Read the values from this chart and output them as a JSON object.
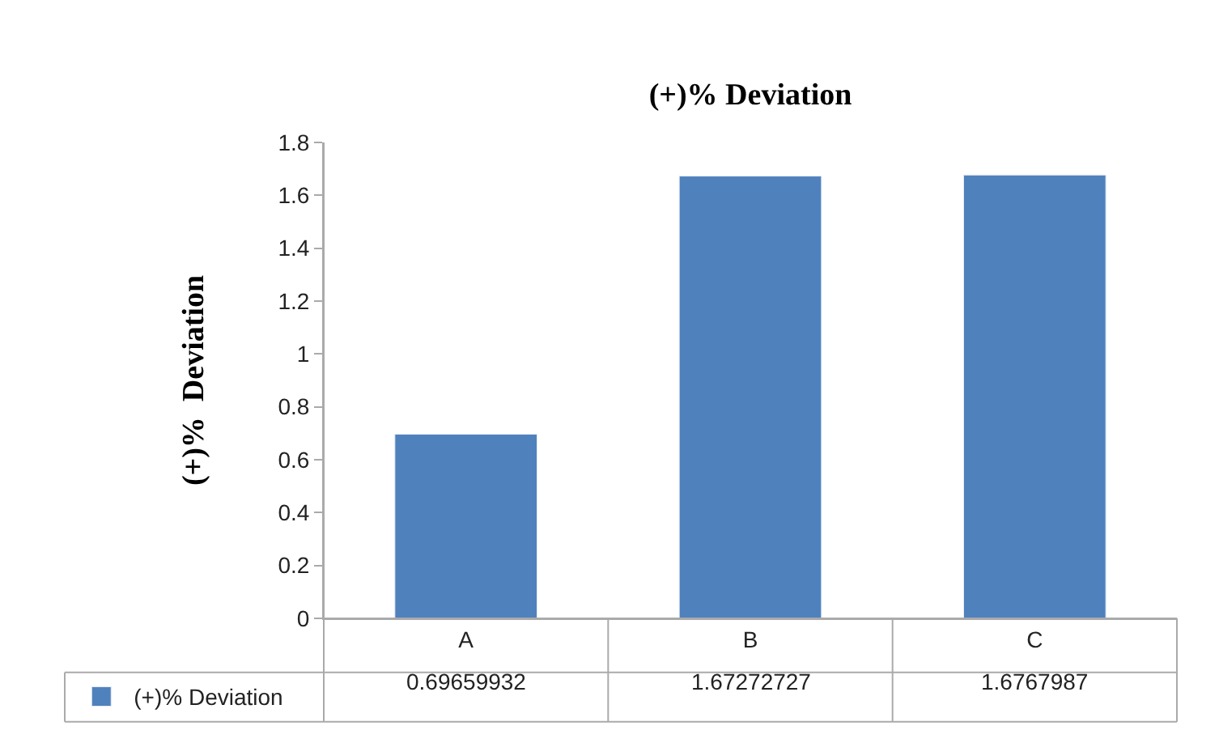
{
  "chart_data": {
    "type": "bar",
    "title": "(+)% Deviation",
    "ylabel": "(+)%  Deviation",
    "categories": [
      "A",
      "B",
      "C"
    ],
    "series": [
      {
        "name": "(+)% Deviation",
        "color": "#4f81bd",
        "values": [
          0.69659932,
          1.67272727,
          1.6767987
        ]
      }
    ],
    "ylim": [
      0,
      1.8
    ],
    "yticks": [
      0,
      0.2,
      0.4,
      0.6,
      0.8,
      1,
      1.2,
      1.4,
      1.6,
      1.8
    ],
    "legend": "bottom",
    "data_labels": true
  }
}
